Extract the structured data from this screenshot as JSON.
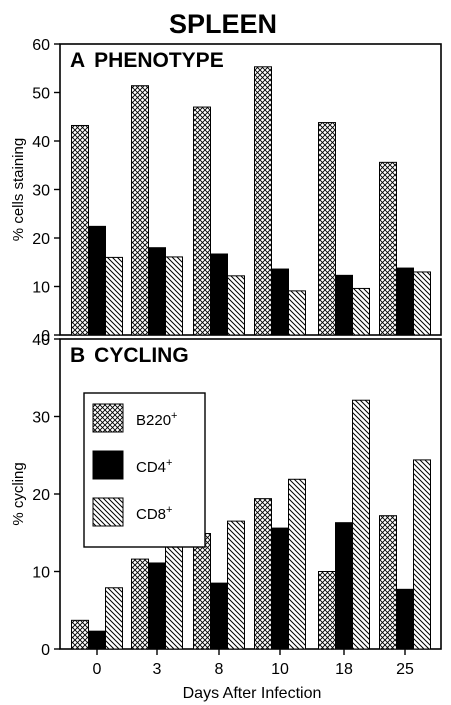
{
  "figure_title": "SPLEEN",
  "xlabel": "Days After Infection",
  "legend": [
    {
      "base": "B220",
      "sup": "+",
      "pattern": "crosshatch"
    },
    {
      "base": "CD4",
      "sup": "+",
      "pattern": "solid"
    },
    {
      "base": "CD8",
      "sup": "+",
      "pattern": "diagonal"
    }
  ],
  "chart_data": [
    {
      "type": "bar",
      "panel_letter": "A",
      "title": "PHENOTYPE",
      "ylabel": "% cells staining",
      "xlabel": "",
      "ylim": [
        0,
        60
      ],
      "yticks": [
        "0",
        "10",
        "20",
        "30",
        "40",
        "50",
        "60"
      ],
      "categories": [
        "0",
        "3",
        "8",
        "10",
        "18",
        "25"
      ],
      "series": [
        {
          "name": "B220+",
          "values": [
            43.2,
            51.4,
            47.0,
            55.3,
            43.8,
            35.6
          ]
        },
        {
          "name": "CD4+",
          "values": [
            22.4,
            18.0,
            16.7,
            13.6,
            12.3,
            13.8
          ]
        },
        {
          "name": "CD8+",
          "values": [
            16.0,
            16.1,
            12.2,
            9.1,
            9.6,
            13.0
          ]
        }
      ],
      "legend_position": "none"
    },
    {
      "type": "bar",
      "panel_letter": "B",
      "title": "CYCLING",
      "ylabel": "% cycling",
      "xlabel": "Days After Infection",
      "ylim": [
        0,
        40
      ],
      "yticks": [
        "0",
        "10",
        "20",
        "30",
        "40"
      ],
      "categories": [
        "0",
        "3",
        "8",
        "10",
        "18",
        "25"
      ],
      "series": [
        {
          "name": "B220+",
          "values": [
            3.7,
            11.6,
            14.9,
            19.4,
            10.0,
            17.2
          ]
        },
        {
          "name": "CD4+",
          "values": [
            2.3,
            11.1,
            8.5,
            15.6,
            16.3,
            7.7
          ]
        },
        {
          "name": "CD8+",
          "values": [
            7.9,
            14.9,
            16.5,
            21.9,
            32.1,
            24.4
          ]
        }
      ],
      "legend_position": "top-left"
    }
  ]
}
